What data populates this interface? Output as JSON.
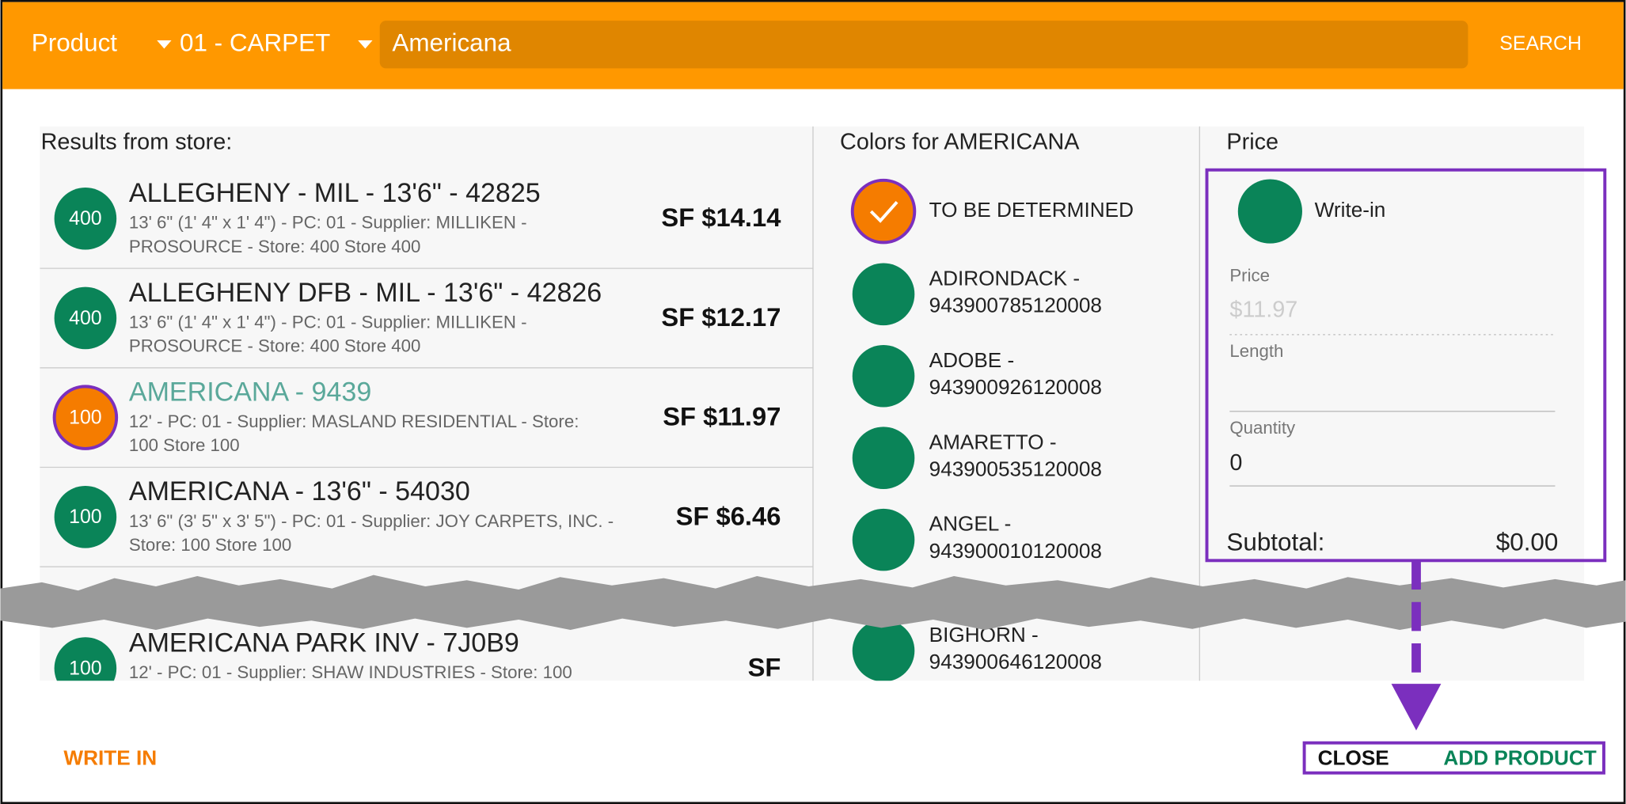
{
  "header": {
    "product_label": "Product",
    "category": "01 - CARPET",
    "search_text": "Americana",
    "search_button": "SEARCH"
  },
  "results": {
    "title": "Results from store:",
    "items": [
      {
        "badge": "400",
        "name": "ALLEGHENY - MIL - 13'6\" - 42825",
        "details": [
          "13' 6\" (1' 4\" x 1' 4\") - PC: 01 - Supplier: MILLIKEN -",
          "PROSOURCE - Store: 400 Store 400"
        ],
        "price": "SF $14.14",
        "selected": false
      },
      {
        "badge": "400",
        "name": "ALLEGHENY DFB - MIL - 13'6\" - 42826",
        "details": [
          "13' 6\" (1' 4\" x 1' 4\") - PC: 01 - Supplier: MILLIKEN -",
          "PROSOURCE - Store: 400 Store 400"
        ],
        "price": "SF $12.17",
        "selected": false
      },
      {
        "badge": "100",
        "name": "AMERICANA - 9439",
        "details": [
          "12' - PC: 01 - Supplier: MASLAND RESIDENTIAL - Store:",
          "100 Store 100"
        ],
        "price": "SF $11.97",
        "selected": true
      },
      {
        "badge": "100",
        "name": "AMERICANA - 13'6\" - 54030",
        "details": [
          "13' 6\" (3' 5\" x 3' 5\") - PC: 01 - Supplier: JOY CARPETS, INC. -",
          "Store: 100 Store 100"
        ],
        "price": "SF $6.46",
        "selected": false
      },
      {
        "badge": "100",
        "name": "AMERICANA PARK INV - 7J0B9",
        "details": [
          "12' - PC: 01 - Supplier: SHAW INDUSTRIES - Store: 100"
        ],
        "price": "SF",
        "selected": false
      }
    ]
  },
  "colors": {
    "title": "Colors for AMERICANA",
    "items": [
      {
        "lines": [
          "TO BE DETERMINED"
        ],
        "selected": true
      },
      {
        "lines": [
          "ADIRONDACK -",
          "943900785120008"
        ],
        "selected": false
      },
      {
        "lines": [
          "ADOBE -",
          "943900926120008"
        ],
        "selected": false
      },
      {
        "lines": [
          "AMARETTO -",
          "943900535120008"
        ],
        "selected": false
      },
      {
        "lines": [
          "ANGEL -",
          "943900010120008"
        ],
        "selected": false
      },
      {
        "lines": [
          "BIGHORN -",
          "943900646120008"
        ],
        "selected": false
      }
    ]
  },
  "price_panel": {
    "title": "Price",
    "write_in": "Write-in",
    "price_label": "Price",
    "price_placeholder": "$11.97",
    "length_label": "Length",
    "quantity_label": "Quantity",
    "quantity_value": "0",
    "subtotal_label": "Subtotal:",
    "subtotal_value": "$0.00"
  },
  "footer": {
    "write_in": "WRITE IN",
    "close": "CLOSE",
    "add_product": "ADD PRODUCT"
  }
}
